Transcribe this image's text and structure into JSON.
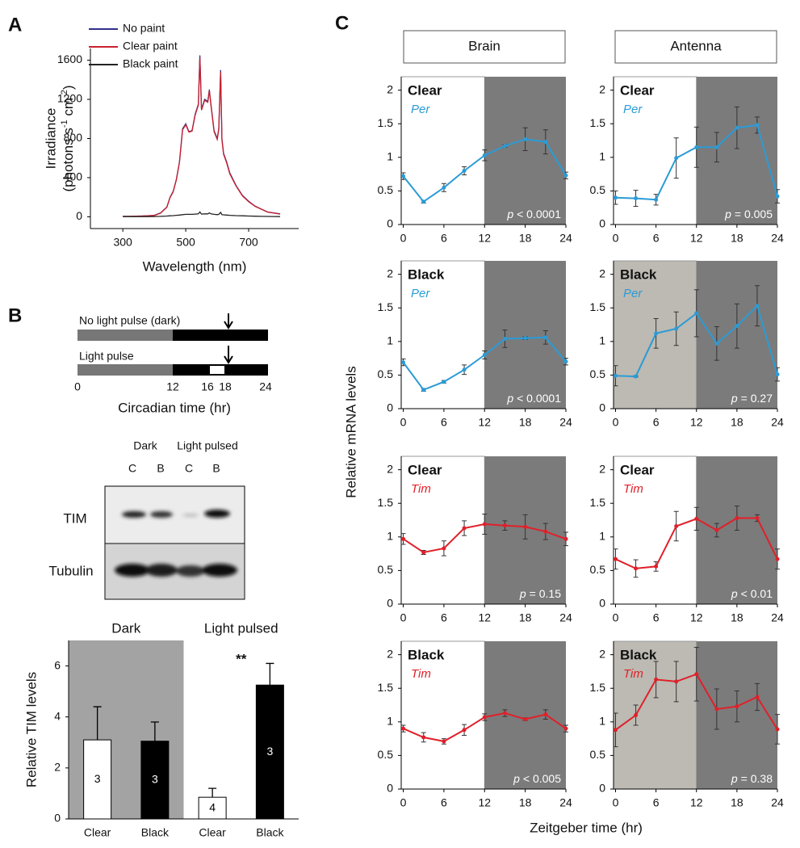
{
  "panel_labels": [
    "A",
    "B",
    "C"
  ],
  "timeline": {
    "rows": [
      "No light pulse (dark)",
      "Light pulse"
    ],
    "ticks": [
      0,
      12,
      16,
      18,
      24
    ],
    "xlabel": "Circadian time (hr)"
  },
  "blot": {
    "groups": [
      "Dark",
      "Light pulsed"
    ],
    "lanes": [
      "C",
      "B",
      "C",
      "B"
    ],
    "rows": [
      "TIM",
      "Tubulin"
    ]
  },
  "panel_c": {
    "headers": [
      "Brain",
      "Antenna"
    ],
    "ylabel": "Relative mRNA levels",
    "xlabel": "Zeitgeber time (hr)"
  },
  "chart_data": [
    {
      "type": "line",
      "xlabel": "Wavelength (nm)",
      "ylabel": "Irradiance",
      "ylabel_units": [
        "(photons s",
        "-1",
        " cm",
        "-2",
        ")"
      ],
      "xlim": [
        197,
        859
      ],
      "xticks": [
        300,
        500,
        700
      ],
      "ylim": [
        -120,
        1720
      ],
      "yticks": [
        0,
        400,
        800,
        1200,
        1600
      ],
      "legend": true,
      "x": [
        300,
        320,
        340,
        360,
        380,
        400,
        420,
        440,
        450,
        460,
        470,
        480,
        490,
        500,
        510,
        520,
        530,
        540,
        545,
        550,
        560,
        570,
        575,
        580,
        590,
        600,
        605,
        611,
        615,
        620,
        630,
        640,
        660,
        680,
        700,
        720,
        740,
        760,
        780,
        800
      ],
      "series": [
        {
          "name": "No paint",
          "color": "#33308a",
          "values": [
            5,
            5,
            6,
            8,
            10,
            15,
            40,
            100,
            200,
            260,
            380,
            560,
            900,
            950,
            870,
            880,
            1050,
            1150,
            1650,
            1100,
            1200,
            1180,
            1300,
            1150,
            880,
            800,
            900,
            1500,
            800,
            650,
            560,
            450,
            320,
            220,
            160,
            110,
            80,
            50,
            40,
            30
          ]
        },
        {
          "name": "Clear paint",
          "color": "#c8202e",
          "values": [
            5,
            5,
            6,
            8,
            10,
            14,
            38,
            98,
            195,
            255,
            375,
            555,
            890,
            940,
            865,
            875,
            1040,
            1140,
            1630,
            1090,
            1190,
            1170,
            1290,
            1140,
            870,
            790,
            890,
            1480,
            790,
            640,
            550,
            440,
            315,
            215,
            155,
            108,
            78,
            48,
            38,
            28
          ]
        },
        {
          "name": "Black paint",
          "color": "#222222",
          "values": [
            2,
            2,
            2,
            2,
            2,
            3,
            5,
            8,
            10,
            12,
            15,
            18,
            22,
            25,
            25,
            25,
            28,
            30,
            50,
            28,
            30,
            30,
            40,
            30,
            25,
            22,
            25,
            45,
            22,
            20,
            18,
            15,
            12,
            10,
            8,
            6,
            5,
            4,
            3,
            2
          ]
        }
      ]
    },
    {
      "type": "bar",
      "ylabel": "Relative TIM levels",
      "categories": [
        "Clear",
        "Black",
        "Clear",
        "Black"
      ],
      "values": [
        3.1,
        3.05,
        0.85,
        5.25
      ],
      "errors": [
        1.3,
        0.75,
        0.35,
        0.85
      ],
      "colors": [
        "#ffffff",
        "#000000",
        "#ffffff",
        "#000000"
      ],
      "n_labels": [
        "3",
        "3",
        "4",
        "3"
      ],
      "groups": [
        {
          "label": "Dark",
          "color": "#a3a3a3"
        },
        {
          "label": "Light pulsed",
          "color": "#ffffff"
        }
      ],
      "significance": "**",
      "ylim": [
        0,
        7
      ],
      "yticks": [
        0,
        2,
        4,
        6
      ]
    },
    {
      "type": "line",
      "label": "Clear",
      "gene": "Per",
      "p_value": {
        "symbol": "p",
        "text": "< 0.0001"
      },
      "markers": true,
      "light_color": "#ffffff",
      "dark_color": "#7b7b7b",
      "dark_phase": [
        12,
        24
      ],
      "x": [
        0,
        3,
        6,
        9,
        12,
        15,
        18,
        21,
        24
      ],
      "xlim": [
        -0.3,
        24
      ],
      "xticks": [
        0,
        6,
        12,
        18,
        24
      ],
      "ylim": [
        0,
        2.2
      ],
      "yticks": [
        0,
        0.5,
        1,
        1.5,
        2
      ],
      "series": [
        {
          "color": "#2b9bd6",
          "values": [
            0.72,
            0.34,
            0.55,
            0.8,
            1.03,
            1.17,
            1.27,
            1.23,
            0.73
          ],
          "errors": [
            0.05,
            0.02,
            0.06,
            0.06,
            0.08,
            0.02,
            0.17,
            0.18,
            0.05
          ]
        }
      ]
    },
    {
      "type": "line",
      "label": "Clear",
      "gene": "Per",
      "p_value": {
        "symbol": "p",
        "text": "= 0.005"
      },
      "markers": true,
      "light_color": "#ffffff",
      "dark_color": "#7b7b7b",
      "dark_phase": [
        12,
        24
      ],
      "x": [
        0,
        3,
        6,
        9,
        12,
        15,
        18,
        21,
        24
      ],
      "xlim": [
        -0.3,
        24
      ],
      "xticks": [
        0,
        6,
        12,
        18,
        24
      ],
      "ylim": [
        0,
        2.2
      ],
      "yticks": [
        0,
        0.5,
        1,
        1.5,
        2
      ],
      "series": [
        {
          "color": "#2b9bd6",
          "values": [
            0.4,
            0.39,
            0.37,
            0.99,
            1.15,
            1.15,
            1.44,
            1.48,
            0.42
          ],
          "errors": [
            0.1,
            0.12,
            0.08,
            0.3,
            0.3,
            0.22,
            0.31,
            0.12,
            0.1
          ]
        }
      ]
    },
    {
      "type": "line",
      "label": "Black",
      "gene": "Per",
      "p_value": {
        "symbol": "p",
        "text": "< 0.0001"
      },
      "markers": true,
      "light_color": "#ffffff",
      "dark_color": "#7b7b7b",
      "dark_phase": [
        12,
        24
      ],
      "x": [
        0,
        3,
        6,
        9,
        12,
        15,
        18,
        21,
        24
      ],
      "xlim": [
        -0.3,
        24
      ],
      "xticks": [
        0,
        6,
        12,
        18,
        24
      ],
      "ylim": [
        0,
        2.2
      ],
      "yticks": [
        0,
        0.5,
        1,
        1.5,
        2
      ],
      "series": [
        {
          "color": "#2b9bd6",
          "values": [
            0.69,
            0.28,
            0.4,
            0.58,
            0.8,
            1.04,
            1.05,
            1.06,
            0.7
          ],
          "errors": [
            0.05,
            0.02,
            0.02,
            0.07,
            0.06,
            0.13,
            0.02,
            0.1,
            0.05
          ]
        }
      ]
    },
    {
      "type": "line",
      "label": "Black",
      "gene": "Per",
      "p_value": {
        "symbol": "p",
        "text": "= 0.27"
      },
      "markers": true,
      "light_color": "#bcbab2",
      "dark_color": "#7b7b7b",
      "dark_phase": [
        12,
        24
      ],
      "x": [
        0,
        3,
        6,
        9,
        12,
        15,
        18,
        21,
        24
      ],
      "xlim": [
        -0.3,
        24
      ],
      "xticks": [
        0,
        6,
        12,
        18,
        24
      ],
      "ylim": [
        0,
        2.2
      ],
      "yticks": [
        0,
        0.5,
        1,
        1.5,
        2
      ],
      "series": [
        {
          "color": "#2b9bd6",
          "values": [
            0.49,
            0.48,
            1.12,
            1.19,
            1.42,
            0.97,
            1.23,
            1.53,
            0.51
          ],
          "errors": [
            0.15,
            0.01,
            0.22,
            0.25,
            0.35,
            0.25,
            0.33,
            0.3,
            0.1
          ]
        }
      ]
    },
    {
      "type": "line",
      "label": "Clear",
      "gene": "Tim",
      "p_value": {
        "symbol": "p",
        "text": "= 0.15"
      },
      "markers": true,
      "light_color": "#ffffff",
      "dark_color": "#7b7b7b",
      "dark_phase": [
        12,
        24
      ],
      "x": [
        0,
        3,
        6,
        9,
        12,
        15,
        18,
        21,
        24
      ],
      "xlim": [
        -0.3,
        24
      ],
      "xticks": [
        0,
        6,
        12,
        18,
        24
      ],
      "ylim": [
        0,
        2.2
      ],
      "yticks": [
        0,
        0.5,
        1,
        1.5,
        2
      ],
      "series": [
        {
          "color": "#e0202a",
          "values": [
            0.97,
            0.77,
            0.83,
            1.13,
            1.19,
            1.17,
            1.15,
            1.08,
            0.97
          ],
          "errors": [
            0.08,
            0.03,
            0.11,
            0.11,
            0.15,
            0.07,
            0.18,
            0.12,
            0.1
          ]
        }
      ]
    },
    {
      "type": "line",
      "label": "Clear",
      "gene": "Tim",
      "p_value": {
        "symbol": "p",
        "text": "< 0.01"
      },
      "markers": true,
      "light_color": "#ffffff",
      "dark_color": "#7b7b7b",
      "dark_phase": [
        12,
        24
      ],
      "x": [
        0,
        3,
        6,
        9,
        12,
        15,
        18,
        21,
        24
      ],
      "xlim": [
        -0.3,
        24
      ],
      "xticks": [
        0,
        6,
        12,
        18,
        24
      ],
      "ylim": [
        0,
        2.2
      ],
      "yticks": [
        0,
        0.5,
        1,
        1.5,
        2
      ],
      "series": [
        {
          "color": "#e0202a",
          "values": [
            0.67,
            0.53,
            0.56,
            1.16,
            1.27,
            1.1,
            1.28,
            1.28,
            0.67
          ],
          "errors": [
            0.15,
            0.13,
            0.07,
            0.22,
            0.17,
            0.1,
            0.18,
            0.05,
            0.15
          ]
        }
      ]
    },
    {
      "type": "line",
      "label": "Black",
      "gene": "Tim",
      "p_value": {
        "symbol": "p",
        "text": "< 0.005"
      },
      "markers": true,
      "light_color": "#ffffff",
      "dark_color": "#7b7b7b",
      "dark_phase": [
        12,
        24
      ],
      "x": [
        0,
        3,
        6,
        9,
        12,
        15,
        18,
        21,
        24
      ],
      "xlim": [
        -0.3,
        24
      ],
      "xticks": [
        0,
        6,
        12,
        18,
        24
      ],
      "ylim": [
        0,
        2.2
      ],
      "yticks": [
        0,
        0.5,
        1,
        1.5,
        2
      ],
      "series": [
        {
          "color": "#e0202a",
          "values": [
            0.9,
            0.77,
            0.71,
            0.88,
            1.07,
            1.13,
            1.04,
            1.11,
            0.9
          ],
          "errors": [
            0.05,
            0.07,
            0.04,
            0.08,
            0.05,
            0.05,
            0.02,
            0.07,
            0.05
          ]
        }
      ]
    },
    {
      "type": "line",
      "label": "Black",
      "gene": "Tim",
      "p_value": {
        "symbol": "p",
        "text": "= 0.38"
      },
      "markers": true,
      "light_color": "#bcbab2",
      "dark_color": "#7b7b7b",
      "dark_phase": [
        12,
        24
      ],
      "x": [
        0,
        3,
        6,
        9,
        12,
        15,
        18,
        21,
        24
      ],
      "xlim": [
        -0.3,
        24
      ],
      "xticks": [
        0,
        6,
        12,
        18,
        24
      ],
      "ylim": [
        0,
        2.2
      ],
      "yticks": [
        0,
        0.5,
        1,
        1.5,
        2
      ],
      "series": [
        {
          "color": "#e0202a",
          "values": [
            0.88,
            1.1,
            1.63,
            1.6,
            1.71,
            1.19,
            1.23,
            1.37,
            0.89
          ],
          "errors": [
            0.25,
            0.15,
            0.27,
            0.3,
            0.4,
            0.3,
            0.23,
            0.2,
            0.22
          ]
        }
      ]
    }
  ]
}
